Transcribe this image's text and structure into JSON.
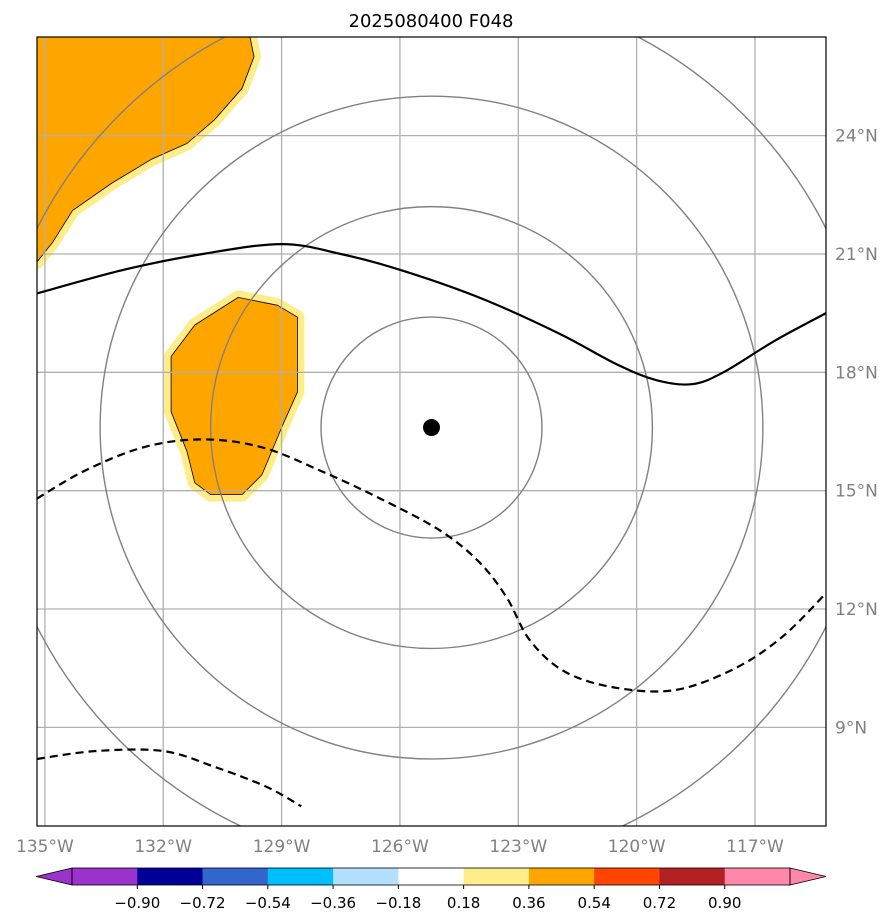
{
  "chart_data": {
    "type": "map",
    "title": "2025080400 F048",
    "projection": "lat-lon",
    "extent": {
      "lon_min": -135.2,
      "lon_max": -115.2,
      "lat_min": 6.5,
      "lat_max": 26.5
    },
    "xticks": [
      {
        "value": -135,
        "label": "135°W"
      },
      {
        "value": -132,
        "label": "132°W"
      },
      {
        "value": -129,
        "label": "129°W"
      },
      {
        "value": -126,
        "label": "126°W"
      },
      {
        "value": -123,
        "label": "123°W"
      },
      {
        "value": -120,
        "label": "120°W"
      },
      {
        "value": -117,
        "label": "117°W"
      }
    ],
    "yticks": [
      {
        "value": 24,
        "label": "24°N"
      },
      {
        "value": 21,
        "label": "21°N"
      },
      {
        "value": 18,
        "label": "18°N"
      },
      {
        "value": 15,
        "label": "15°N"
      },
      {
        "value": 12,
        "label": "12°N"
      },
      {
        "value": 9,
        "label": "9°N"
      }
    ],
    "grid": true,
    "center": {
      "lon": -125.2,
      "lat": 16.6
    },
    "range_rings": {
      "color": "#808080",
      "radii_deg": [
        2.8,
        5.6,
        8.4,
        11.2
      ]
    },
    "shaded_regions": [
      {
        "level": "0.54",
        "color": "#ffa500",
        "edge_color": "#ffed8a",
        "lonlat": [
          [
            -135.2,
            26.5
          ],
          [
            -129.8,
            26.5
          ],
          [
            -129.7,
            26.0
          ],
          [
            -130.0,
            25.2
          ],
          [
            -130.7,
            24.4
          ],
          [
            -131.4,
            23.8
          ],
          [
            -132.3,
            23.4
          ],
          [
            -133.3,
            22.8
          ],
          [
            -134.3,
            22.1
          ],
          [
            -134.8,
            21.3
          ],
          [
            -135.2,
            20.8
          ]
        ]
      },
      {
        "level": "0.54",
        "color": "#ffa500",
        "edge_color": "#ffed8a",
        "lonlat": [
          [
            -130.1,
            19.9
          ],
          [
            -129.1,
            19.7
          ],
          [
            -128.6,
            19.4
          ],
          [
            -128.6,
            17.5
          ],
          [
            -129.0,
            16.6
          ],
          [
            -129.5,
            15.4
          ],
          [
            -130.0,
            14.9
          ],
          [
            -130.8,
            14.9
          ],
          [
            -131.2,
            15.2
          ],
          [
            -131.4,
            16.0
          ],
          [
            -131.8,
            17.0
          ],
          [
            -131.8,
            18.4
          ],
          [
            -131.2,
            19.2
          ]
        ]
      }
    ],
    "series": [
      {
        "style": "solid",
        "color": "#000000",
        "lonlat": [
          [
            -135.2,
            20.0
          ],
          [
            -133.0,
            20.6
          ],
          [
            -131.0,
            21.0
          ],
          [
            -129.0,
            21.25
          ],
          [
            -127.5,
            21.0
          ],
          [
            -126.0,
            20.6
          ],
          [
            -124.0,
            19.9
          ],
          [
            -122.0,
            19.0
          ],
          [
            -120.5,
            18.2
          ],
          [
            -119.5,
            17.8
          ],
          [
            -118.6,
            17.7
          ],
          [
            -117.8,
            18.0
          ],
          [
            -116.5,
            18.8
          ],
          [
            -115.2,
            19.5
          ]
        ]
      },
      {
        "style": "dashed",
        "color": "#000000",
        "lonlat": [
          [
            -135.2,
            14.8
          ],
          [
            -134.0,
            15.5
          ],
          [
            -132.5,
            16.1
          ],
          [
            -131.0,
            16.3
          ],
          [
            -129.5,
            16.1
          ],
          [
            -128.0,
            15.5
          ],
          [
            -126.5,
            14.8
          ],
          [
            -125.0,
            14.0
          ],
          [
            -124.0,
            13.2
          ],
          [
            -123.3,
            12.3
          ],
          [
            -122.7,
            11.2
          ],
          [
            -121.8,
            10.4
          ],
          [
            -120.5,
            10.0
          ],
          [
            -119.0,
            9.95
          ],
          [
            -117.5,
            10.5
          ],
          [
            -116.3,
            11.3
          ],
          [
            -115.2,
            12.4
          ]
        ]
      },
      {
        "style": "dashed",
        "color": "#000000",
        "lonlat": [
          [
            -135.2,
            8.2
          ],
          [
            -133.7,
            8.4
          ],
          [
            -132.0,
            8.4
          ],
          [
            -130.7,
            8.0
          ],
          [
            -129.4,
            7.5
          ],
          [
            -128.5,
            7.0
          ]
        ]
      }
    ],
    "colorbar": {
      "extend": "both",
      "colors": [
        "#9933cc",
        "#000099",
        "#3366cc",
        "#00bfff",
        "#b3e0ff",
        "#ffffff",
        "#ffed8a",
        "#ffa500",
        "#ff4500",
        "#b22222",
        "#ff88aa"
      ],
      "tick_labels": [
        "−0.90",
        "−0.72",
        "−0.54",
        "−0.36",
        "−0.18",
        "0.18",
        "0.36",
        "0.54",
        "0.72",
        "0.90"
      ]
    }
  }
}
